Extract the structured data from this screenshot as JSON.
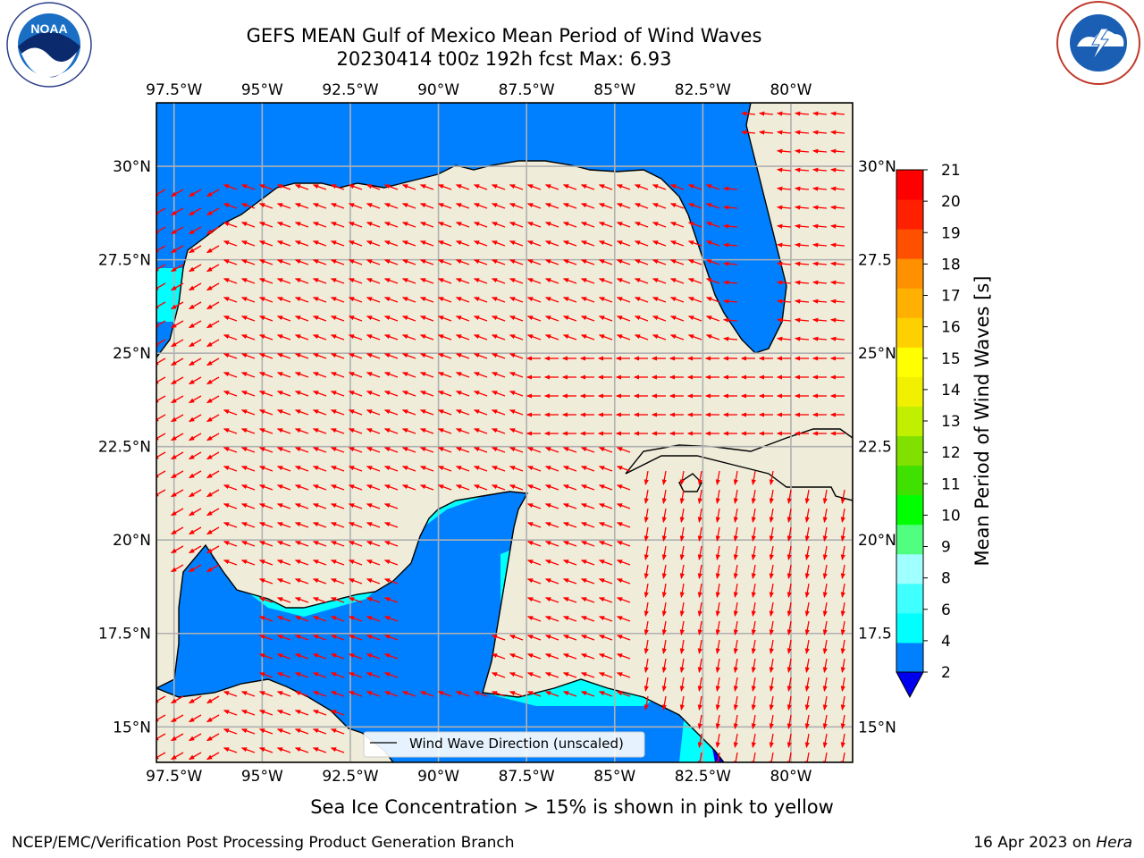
{
  "title": {
    "line1": "GEFS MEAN Gulf of Mexico Mean Period of Wind Waves",
    "line2": "20230414 t00z 192h fcst   Max: 6.93"
  },
  "logos": {
    "left": "NOAA",
    "left_ring_text": "NATIONAL OCEANIC AND ATMOSPHERIC ADMINISTRATION · U.S. DEPARTMENT OF COMMERCE",
    "right_ring_text": "NATIONAL WEATHER SERVICE",
    "left_icon": "noaa-logo",
    "right_icon": "nws-logo"
  },
  "map": {
    "lon_labels": [
      "97.5°W",
      "95°W",
      "92.5°W",
      "90°W",
      "87.5°W",
      "85°W",
      "82.5°W",
      "80°W"
    ],
    "lon_values": [
      -97.5,
      -95,
      -92.5,
      -90,
      -87.5,
      -85,
      -82.5,
      -80
    ],
    "lat_labels": [
      "30°N",
      "27.5°N",
      "25°N",
      "22.5°N",
      "20°N",
      "17.5°N",
      "15°N"
    ],
    "lat_labels_right": [
      "30°N",
      "27.5",
      "25°N",
      "22.5",
      "20°N",
      "17.5",
      "15°N"
    ],
    "lat_values": [
      30,
      27.5,
      25,
      22.5,
      20,
      17.5,
      15
    ],
    "lon_range": [
      -98,
      -78.25
    ],
    "lat_range": [
      14.05,
      31.7
    ],
    "grid": true,
    "land_color": "#efedda",
    "ocean_colors": {
      "2-4": "#0080ff",
      "4-6": "#00ffff",
      "<2": "#0000f0"
    },
    "arrow_color": "#ff0000"
  },
  "legend": {
    "line_label": "Wind Wave Direction (unscaled)",
    "placement": "bottom-center"
  },
  "colorbar": {
    "label": "Mean Period of Wind Waves [s]",
    "ticks": [
      "2",
      "4",
      "6",
      "8",
      "9",
      "10",
      "11",
      "12",
      "13",
      "14",
      "15",
      "16",
      "17",
      "18",
      "19",
      "20",
      "21"
    ],
    "colors": [
      "#0080ff",
      "#00ffff",
      "#40ffff",
      "#a0ffff",
      "#50ff80",
      "#00ff00",
      "#40e000",
      "#80e000",
      "#c0f000",
      "#f0f000",
      "#ffff00",
      "#ffd000",
      "#ffb000",
      "#ff9000",
      "#ff5000",
      "#ff2000",
      "#ff0000"
    ],
    "extend_color": "#0000f0"
  },
  "ice_note": "Sea Ice Concentration > 15% is shown in pink to yellow",
  "footer": {
    "left": "NCEP/EMC/Verification Post Processing Product Generation Branch",
    "right_date": "16 Apr 2023 on ",
    "right_host": "Hera"
  }
}
